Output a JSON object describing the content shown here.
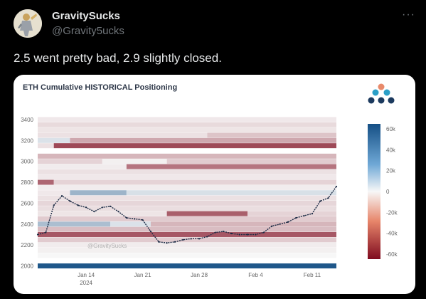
{
  "tweet": {
    "author_name": "GravitySucks",
    "author_handle": "@Gravity5ucks",
    "more_icon": "more-icon",
    "text": "2.5 went pretty bad, 2.9 slightly closed."
  },
  "card": {
    "title": "ETH Cumulative HISTORICAL Positioning",
    "watermark": "@GravitySucks"
  },
  "chart_data": {
    "type": "heatmap",
    "title": "ETH Cumulative HISTORICAL Positioning",
    "y_ticks": [
      2000,
      2200,
      2400,
      2600,
      2800,
      3000,
      3200,
      3400
    ],
    "y_range": [
      1990,
      3420
    ],
    "x_ticks": [
      "Jan 14",
      "Jan 21",
      "Jan 28",
      "Feb 4",
      "Feb 11"
    ],
    "x_year": "2024",
    "x_range": [
      "2024-01-08",
      "2024-02-14"
    ],
    "colorbar": {
      "ticks": [
        "60k",
        "40k",
        "20k",
        "0",
        "-20k",
        "-40k",
        "-60k"
      ],
      "min": -65000,
      "max": 65000,
      "low_color": "#7f0b1f",
      "mid_color": "#f7f7f7",
      "high_color": "#154f85"
    },
    "bands": [
      {
        "price": 3400,
        "segments": [
          {
            "start": "2024-01-08",
            "end": "2024-02-14",
            "value": -4000
          }
        ]
      },
      {
        "price": 3350,
        "segments": [
          {
            "start": "2024-01-08",
            "end": "2024-02-14",
            "value": -8000
          }
        ]
      },
      {
        "price": 3300,
        "segments": [
          {
            "start": "2024-01-08",
            "end": "2024-02-14",
            "value": -5000
          }
        ]
      },
      {
        "price": 3250,
        "segments": [
          {
            "start": "2024-01-08",
            "end": "2024-01-29",
            "value": -6000
          },
          {
            "start": "2024-01-29",
            "end": "2024-02-14",
            "value": -14000
          }
        ]
      },
      {
        "price": 3200,
        "segments": [
          {
            "start": "2024-01-08",
            "end": "2024-01-12",
            "value": 8000
          },
          {
            "start": "2024-01-12",
            "end": "2024-02-14",
            "value": -22000
          }
        ]
      },
      {
        "price": 3150,
        "segments": [
          {
            "start": "2024-01-08",
            "end": "2024-01-10",
            "value": -6000
          },
          {
            "start": "2024-01-10",
            "end": "2024-02-14",
            "value": -48000
          }
        ]
      },
      {
        "price": 3050,
        "segments": [
          {
            "start": "2024-01-08",
            "end": "2024-02-14",
            "value": -18000
          }
        ]
      },
      {
        "price": 3000,
        "segments": [
          {
            "start": "2024-01-08",
            "end": "2024-01-16",
            "value": -10000
          },
          {
            "start": "2024-01-16",
            "end": "2024-01-24",
            "value": -2000
          },
          {
            "start": "2024-01-24",
            "end": "2024-02-14",
            "value": -12000
          }
        ]
      },
      {
        "price": 2950,
        "segments": [
          {
            "start": "2024-01-08",
            "end": "2024-01-19",
            "value": -3000
          },
          {
            "start": "2024-01-19",
            "end": "2024-02-14",
            "value": -36000
          }
        ]
      },
      {
        "price": 2900,
        "segments": [
          {
            "start": "2024-01-08",
            "end": "2024-02-14",
            "value": -6000
          }
        ]
      },
      {
        "price": 2850,
        "segments": [
          {
            "start": "2024-01-08",
            "end": "2024-02-14",
            "value": -4000
          }
        ]
      },
      {
        "price": 2800,
        "segments": [
          {
            "start": "2024-01-08",
            "end": "2024-01-10",
            "value": -40000
          },
          {
            "start": "2024-01-10",
            "end": "2024-02-14",
            "value": -10000
          }
        ]
      },
      {
        "price": 2750,
        "segments": [
          {
            "start": "2024-01-08",
            "end": "2024-02-14",
            "value": -3000
          }
        ]
      },
      {
        "price": 2700,
        "segments": [
          {
            "start": "2024-01-08",
            "end": "2024-01-12",
            "value": -4000
          },
          {
            "start": "2024-01-12",
            "end": "2024-01-19",
            "value": 26000
          },
          {
            "start": "2024-01-19",
            "end": "2024-02-14",
            "value": 9000
          }
        ]
      },
      {
        "price": 2650,
        "segments": [
          {
            "start": "2024-01-08",
            "end": "2024-02-14",
            "value": -6000
          }
        ]
      },
      {
        "price": 2600,
        "segments": [
          {
            "start": "2024-01-08",
            "end": "2024-02-14",
            "value": -9000
          }
        ]
      },
      {
        "price": 2550,
        "segments": [
          {
            "start": "2024-01-08",
            "end": "2024-02-14",
            "value": -7000
          }
        ]
      },
      {
        "price": 2500,
        "segments": [
          {
            "start": "2024-01-08",
            "end": "2024-01-24",
            "value": -5000
          },
          {
            "start": "2024-01-24",
            "end": "2024-02-03",
            "value": -42000
          },
          {
            "start": "2024-02-03",
            "end": "2024-02-14",
            "value": -10000
          }
        ]
      },
      {
        "price": 2450,
        "segments": [
          {
            "start": "2024-01-08",
            "end": "2024-02-14",
            "value": -12000
          }
        ]
      },
      {
        "price": 2400,
        "segments": [
          {
            "start": "2024-01-08",
            "end": "2024-01-17",
            "value": 22000
          },
          {
            "start": "2024-01-17",
            "end": "2024-01-22",
            "value": 8000
          },
          {
            "start": "2024-01-22",
            "end": "2024-02-14",
            "value": -18000
          }
        ]
      },
      {
        "price": 2350,
        "segments": [
          {
            "start": "2024-01-08",
            "end": "2024-02-14",
            "value": -16000
          }
        ]
      },
      {
        "price": 2300,
        "segments": [
          {
            "start": "2024-01-08",
            "end": "2024-02-14",
            "value": -44000
          }
        ]
      },
      {
        "price": 2250,
        "segments": [
          {
            "start": "2024-01-08",
            "end": "2024-02-14",
            "value": -12000
          }
        ]
      },
      {
        "price": 2200,
        "segments": [
          {
            "start": "2024-01-08",
            "end": "2024-02-14",
            "value": -3000
          }
        ]
      },
      {
        "price": 2150,
        "segments": [
          {
            "start": "2024-01-08",
            "end": "2024-02-14",
            "value": -2000
          }
        ]
      },
      {
        "price": 2100,
        "segments": [
          {
            "start": "2024-01-08",
            "end": "2024-02-14",
            "value": 0
          }
        ]
      },
      {
        "price": 2000,
        "segments": [
          {
            "start": "2024-01-08",
            "end": "2024-02-14",
            "value": 62000
          }
        ]
      }
    ],
    "price_series": {
      "x": [
        "2024-01-08",
        "2024-01-09",
        "2024-01-10",
        "2024-01-11",
        "2024-01-12",
        "2024-01-13",
        "2024-01-14",
        "2024-01-15",
        "2024-01-16",
        "2024-01-17",
        "2024-01-18",
        "2024-01-19",
        "2024-01-20",
        "2024-01-21",
        "2024-01-22",
        "2024-01-23",
        "2024-01-24",
        "2024-01-25",
        "2024-01-26",
        "2024-01-27",
        "2024-01-28",
        "2024-01-29",
        "2024-01-30",
        "2024-01-31",
        "2024-02-01",
        "2024-02-02",
        "2024-02-03",
        "2024-02-04",
        "2024-02-05",
        "2024-02-06",
        "2024-02-07",
        "2024-02-08",
        "2024-02-09",
        "2024-02-10",
        "2024-02-11",
        "2024-02-12",
        "2024-02-13",
        "2024-02-14"
      ],
      "y": [
        2300,
        2320,
        2580,
        2670,
        2620,
        2580,
        2560,
        2520,
        2560,
        2570,
        2520,
        2460,
        2450,
        2440,
        2330,
        2230,
        2220,
        2230,
        2250,
        2260,
        2260,
        2280,
        2320,
        2330,
        2310,
        2300,
        2300,
        2300,
        2320,
        2380,
        2400,
        2420,
        2460,
        2480,
        2500,
        2620,
        2650,
        2760
      ]
    }
  }
}
